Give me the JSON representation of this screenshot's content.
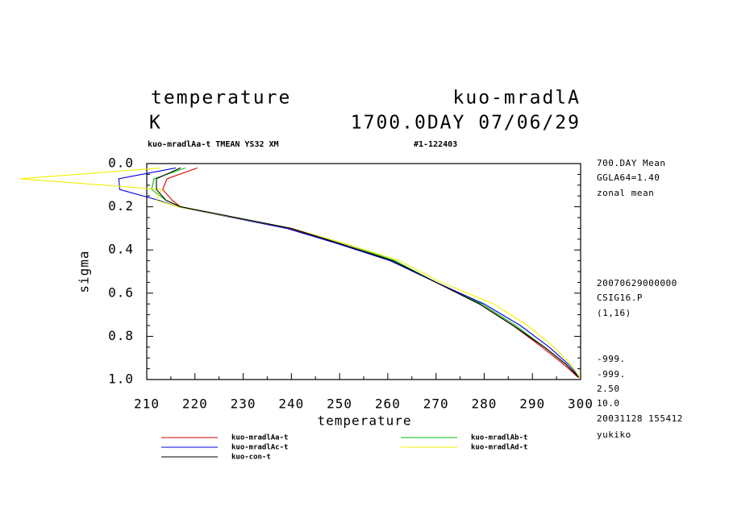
{
  "chart_data": {
    "type": "line",
    "title": "temperature",
    "title_right": "kuo-mradlA",
    "units": "K",
    "time_label": "1700.0DAY 07/06/29",
    "subtitle": "kuo-mradlAa-t TMEAN YS32 XM",
    "subtitle_right": "#1-122403",
    "xlabel": "temperature",
    "ylabel": "sigma",
    "xlim": [
      210,
      300
    ],
    "xticks": [
      210,
      220,
      230,
      240,
      250,
      260,
      270,
      280,
      290,
      300
    ],
    "ylim": [
      0,
      1
    ],
    "yticks": [
      {
        "value": 0,
        "label": "0.0"
      },
      {
        "value": 0.2,
        "label": "0.2"
      },
      {
        "value": 0.4,
        "label": "0.4"
      },
      {
        "value": 0.6,
        "label": "0.6"
      },
      {
        "value": 0.8,
        "label": "0.8"
      },
      {
        "value": 1,
        "label": "1.0"
      }
    ],
    "y_inverted": true,
    "y": [
      0.02,
      0.07,
      0.12,
      0.17,
      0.2,
      0.3,
      0.37,
      0.45,
      0.55,
      0.65,
      0.75,
      0.85,
      0.93,
      0.99
    ],
    "series": [
      {
        "name": "kuo-mradlAa-t",
        "color": "#d40000",
        "values": [
          220.5,
          214.2,
          213.3,
          215.3,
          217,
          239.5,
          250,
          261,
          270,
          279,
          286,
          292,
          296.5,
          299.5
        ]
      },
      {
        "name": "kuo-mradlAb-t",
        "color": "#00c000",
        "values": [
          218,
          211.5,
          211,
          214,
          217,
          240,
          251,
          261.5,
          270,
          279.5,
          286.5,
          292.5,
          297,
          299.7
        ]
      },
      {
        "name": "kuo-mradlAc-t",
        "color": "#0000e0",
        "values": [
          216,
          204.2,
          204.4,
          212.5,
          216.5,
          239,
          249.5,
          260.5,
          270,
          280,
          287.5,
          293.5,
          297.5,
          299.8
        ]
      },
      {
        "name": "kuo-mradlAd-t",
        "color": "#f0f000",
        "values": [
          213,
          183.7,
          213,
          212,
          216.5,
          240,
          251,
          262.5,
          271,
          282,
          289,
          294.5,
          298,
          299.8
        ]
      },
      {
        "name": "kuo-con-t",
        "color": "#000000",
        "values": [
          217,
          212,
          212,
          214,
          217,
          240,
          250,
          261,
          270,
          279,
          286,
          292.5,
          297,
          299.6
        ]
      }
    ],
    "annotations": [
      "700.DAY Mean",
      "GGLA64=1.40",
      "zonal mean",
      "20070629000000",
      "CSIG16.P",
      "(1,16)",
      "-999.",
      "-999.",
      "2.50",
      "10.0",
      "20031128 155412",
      "yukiko"
    ]
  }
}
